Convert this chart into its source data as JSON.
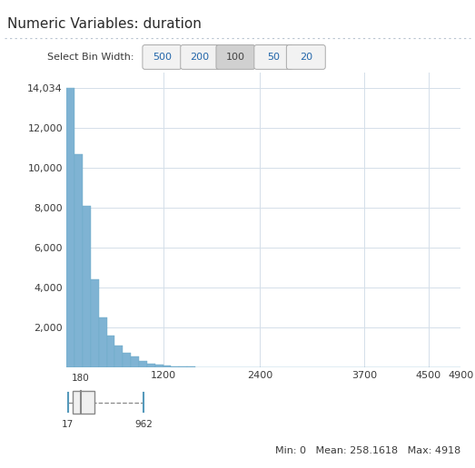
{
  "title": "Numeric Variables: duration",
  "bin_width": 100,
  "x_min": 0,
  "x_max": 4900,
  "y_max": 14500,
  "yticks": [
    0,
    2000,
    4000,
    6000,
    8000,
    10000,
    12000,
    14034
  ],
  "ytick_labels": [
    "",
    "2,000",
    "4,000",
    "6,000",
    "8,000",
    "10,000",
    "12,000",
    "14,034"
  ],
  "xticks": [
    1200,
    2400,
    3700,
    4500,
    4900
  ],
  "bar_color": "#7fb3d3",
  "bar_edge_color": "#6aaac8",
  "background_color": "#ffffff",
  "grid_color": "#d4dfe9",
  "bin_counts": [
    14034,
    10700,
    8100,
    4400,
    2500,
    1600,
    1100,
    750,
    550,
    300,
    200,
    130,
    100,
    60,
    50,
    35,
    25,
    20,
    15,
    10,
    8,
    6,
    5,
    4,
    3,
    2,
    2,
    2,
    1,
    1,
    1,
    1,
    1,
    1,
    1,
    1,
    1,
    1,
    1,
    1,
    1,
    1,
    1,
    1,
    1,
    1,
    1,
    1,
    1
  ],
  "stats_text": "Min: 0   Mean: 258.1618   Max: 4918",
  "boxplot_median": 180,
  "boxplot_q1": 80,
  "boxplot_q3": 350,
  "boxplot_whisker_low": 17,
  "boxplot_whisker_high": 962,
  "boxplot_outlier_line": 4918,
  "select_bin_width_label": "Select Bin Width:",
  "bin_options": [
    "500",
    "200",
    "100",
    "50",
    "20"
  ],
  "selected_bin": "100",
  "title_fontsize": 11,
  "tick_fontsize": 8,
  "stats_fontsize": 8,
  "btn_fontsize": 8
}
